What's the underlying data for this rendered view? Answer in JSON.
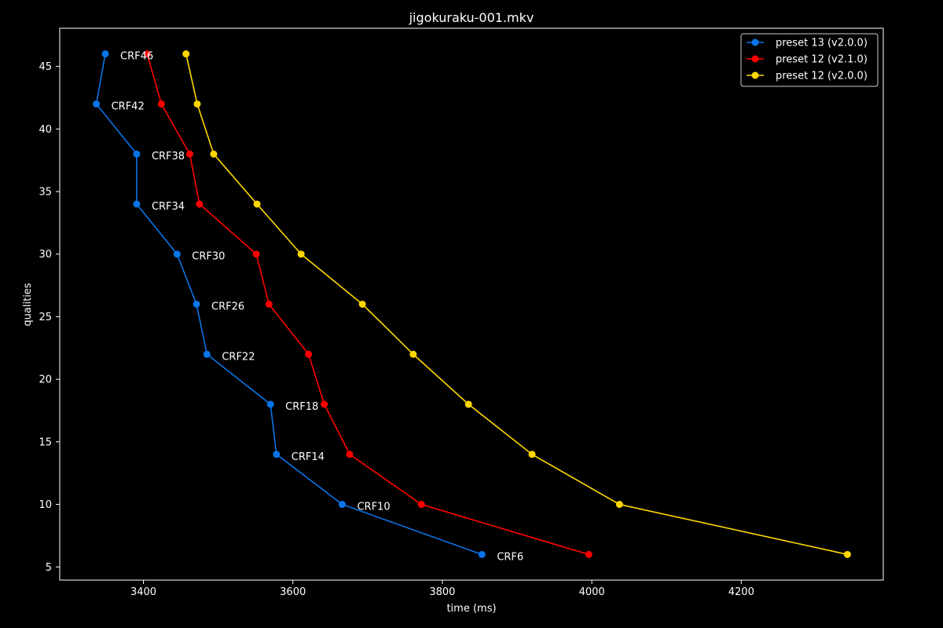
{
  "chart_data": {
    "type": "line",
    "title": "jigokuraku-001.mkv",
    "xlabel": "time (ms)",
    "ylabel": "qualities",
    "xlim": [
      3288,
      4390
    ],
    "ylim": [
      3.95,
      48.05
    ],
    "xticks": [
      3400,
      3600,
      3800,
      4000,
      4200
    ],
    "yticks": [
      5,
      10,
      15,
      20,
      25,
      30,
      35,
      40,
      45
    ],
    "grid": false,
    "legend_position": "top-right",
    "series": [
      {
        "name": "preset 13 (v2.0.0)",
        "color": "#0a74e8",
        "points": [
          {
            "x": 3349,
            "y": 46
          },
          {
            "x": 3337,
            "y": 42
          },
          {
            "x": 3391,
            "y": 38
          },
          {
            "x": 3391,
            "y": 34
          },
          {
            "x": 3445,
            "y": 30
          },
          {
            "x": 3471,
            "y": 26
          },
          {
            "x": 3485,
            "y": 22
          },
          {
            "x": 3570,
            "y": 18
          },
          {
            "x": 3578,
            "y": 14
          },
          {
            "x": 3666,
            "y": 10
          },
          {
            "x": 3853,
            "y": 6
          }
        ]
      },
      {
        "name": "preset 12 (v2.1.0)",
        "color": "#ff0000",
        "points": [
          {
            "x": 3405,
            "y": 46
          },
          {
            "x": 3424,
            "y": 42
          },
          {
            "x": 3462,
            "y": 38
          },
          {
            "x": 3475,
            "y": 34
          },
          {
            "x": 3551,
            "y": 30
          },
          {
            "x": 3568,
            "y": 26
          },
          {
            "x": 3621,
            "y": 22
          },
          {
            "x": 3642,
            "y": 18
          },
          {
            "x": 3676,
            "y": 14
          },
          {
            "x": 3772,
            "y": 10
          },
          {
            "x": 3996,
            "y": 6
          }
        ]
      },
      {
        "name": "preset 12 (v2.0.0)",
        "color": "#ffd700",
        "points": [
          {
            "x": 3457,
            "y": 46
          },
          {
            "x": 3472,
            "y": 42
          },
          {
            "x": 3494,
            "y": 38
          },
          {
            "x": 3552,
            "y": 34
          },
          {
            "x": 3611,
            "y": 30
          },
          {
            "x": 3693,
            "y": 26
          },
          {
            "x": 3761,
            "y": 22
          },
          {
            "x": 3835,
            "y": 18
          },
          {
            "x": 3920,
            "y": 14
          },
          {
            "x": 4037,
            "y": 10
          },
          {
            "x": 4342,
            "y": 6
          }
        ]
      }
    ],
    "annotations": [
      {
        "text": "CRF46",
        "x": 3349,
        "y": 46
      },
      {
        "text": "CRF42",
        "x": 3337,
        "y": 42
      },
      {
        "text": "CRF38",
        "x": 3391,
        "y": 38
      },
      {
        "text": "CRF34",
        "x": 3391,
        "y": 34
      },
      {
        "text": "CRF30",
        "x": 3445,
        "y": 30
      },
      {
        "text": "CRF26",
        "x": 3471,
        "y": 26
      },
      {
        "text": "CRF22",
        "x": 3485,
        "y": 22
      },
      {
        "text": "CRF18",
        "x": 3570,
        "y": 18
      },
      {
        "text": "CRF14",
        "x": 3578,
        "y": 14
      },
      {
        "text": "CRF10",
        "x": 3666,
        "y": 10
      },
      {
        "text": "CRF6",
        "x": 3853,
        "y": 6
      }
    ]
  }
}
